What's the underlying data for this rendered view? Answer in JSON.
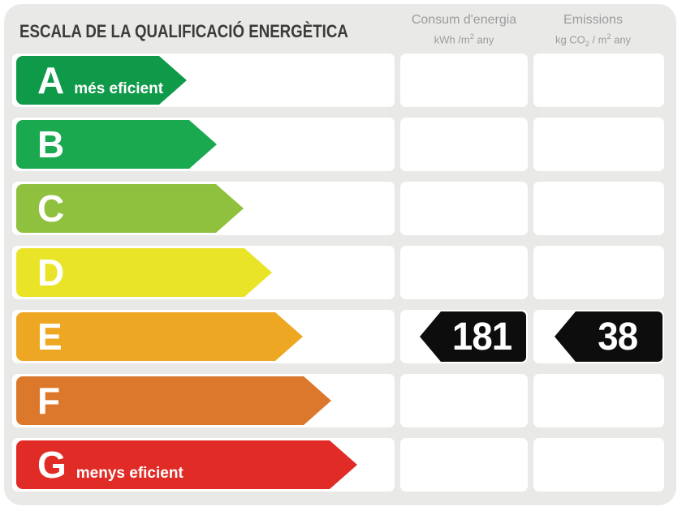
{
  "header": {
    "title": "ESCALA DE LA QUALIFICACIÓ ENERGÈTICA",
    "consum": {
      "label": "Consum d'energia",
      "u1": "kWh /m",
      "u2": "2",
      "u3": " any"
    },
    "emissions": {
      "label": "Emissions",
      "u1": "kg CO",
      "u2": "2",
      "u3": " / m",
      "u4": "2",
      "u5": " any"
    }
  },
  "colors": {
    "panel_bg": "#e9e9e8",
    "band_bg": "#ffffff",
    "title_text": "#3b3b3a",
    "header_text": "#9c9c9c",
    "value_arrow_bg": "#0d0d0d",
    "value_text": "#ffffff"
  },
  "scale": [
    {
      "letter": "A",
      "note": "més eficient",
      "color": "#0f9a49",
      "arrow_width": 210
    },
    {
      "letter": "B",
      "note": "",
      "color": "#1aa94f",
      "arrow_width": 247
    },
    {
      "letter": "C",
      "note": "",
      "color": "#8fc03e",
      "arrow_width": 280
    },
    {
      "letter": "D",
      "note": "",
      "color": "#eae428",
      "arrow_width": 315
    },
    {
      "letter": "E",
      "note": "",
      "color": "#eea722",
      "arrow_width": 353
    },
    {
      "letter": "F",
      "note": "",
      "color": "#dc782b",
      "arrow_width": 388
    },
    {
      "letter": "G",
      "note": "menys eficient",
      "color": "#e12b26",
      "arrow_width": 420
    }
  ],
  "values": {
    "rating": "E",
    "consum": "181",
    "emissions": "38"
  },
  "chart_data": {
    "type": "bar",
    "orientation": "horizontal",
    "title": "ESCALA DE LA QUALIFICACIÓ ENERGÈTICA",
    "categories": [
      "A",
      "B",
      "C",
      "D",
      "E",
      "F",
      "G"
    ],
    "values": [
      210,
      247,
      280,
      315,
      353,
      388,
      420
    ],
    "colors": [
      "#0f9a49",
      "#1aa94f",
      "#8fc03e",
      "#eae428",
      "#eea722",
      "#dc782b",
      "#e12b26"
    ],
    "annotations": [
      "A: més eficient",
      "G: menys eficient"
    ],
    "selected_rating": "E",
    "series": [
      {
        "name": "Consum d'energia (kWh /m2 any)",
        "rating": "E",
        "value": 181
      },
      {
        "name": "Emissions (kg CO2 / m2 any)",
        "rating": "E",
        "value": 38
      }
    ],
    "xlabel": "",
    "ylabel": ""
  }
}
